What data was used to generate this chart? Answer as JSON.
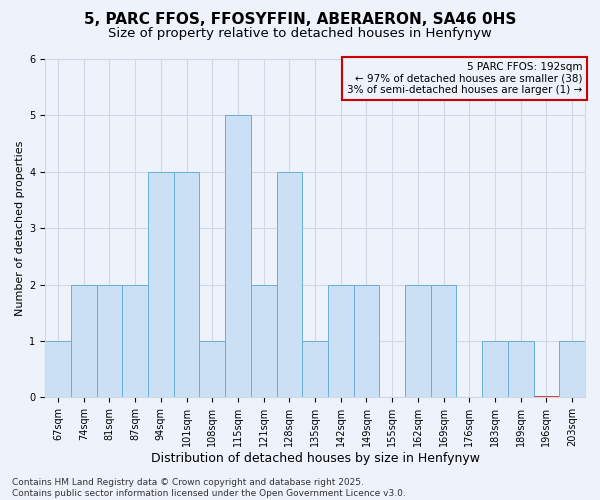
{
  "title_line1": "5, PARC FFOS, FFOSYFFIN, ABERAERON, SA46 0HS",
  "title_line2": "Size of property relative to detached houses in Henfynyw",
  "xlabel": "Distribution of detached houses by size in Henfynyw",
  "ylabel": "Number of detached properties",
  "categories": [
    "67sqm",
    "74sqm",
    "81sqm",
    "87sqm",
    "94sqm",
    "101sqm",
    "108sqm",
    "115sqm",
    "121sqm",
    "128sqm",
    "135sqm",
    "142sqm",
    "149sqm",
    "155sqm",
    "162sqm",
    "169sqm",
    "176sqm",
    "183sqm",
    "189sqm",
    "196sqm",
    "203sqm"
  ],
  "values": [
    1,
    2,
    2,
    2,
    4,
    4,
    1,
    5,
    2,
    4,
    1,
    2,
    2,
    0,
    2,
    2,
    0,
    1,
    1,
    0,
    1
  ],
  "bar_color": "#cce0f5",
  "bar_edge_color": "#6aaed6",
  "highlight_bar_index": 19,
  "highlight_bar_edge_color": "#cc0000",
  "ylim": [
    0,
    6
  ],
  "yticks": [
    0,
    1,
    2,
    3,
    4,
    5,
    6
  ],
  "grid_color": "#d0d8e8",
  "background_color": "#eef2fa",
  "annotation_text": "5 PARC FFOS: 192sqm\n← 97% of detached houses are smaller (38)\n3% of semi-detached houses are larger (1) →",
  "annotation_box_edge_color": "#cc0000",
  "footer_text": "Contains HM Land Registry data © Crown copyright and database right 2025.\nContains public sector information licensed under the Open Government Licence v3.0.",
  "title_fontsize": 11,
  "subtitle_fontsize": 9.5,
  "ylabel_fontsize": 8,
  "xlabel_fontsize": 9,
  "tick_fontsize": 7,
  "annotation_fontsize": 7.5,
  "footer_fontsize": 6.5
}
